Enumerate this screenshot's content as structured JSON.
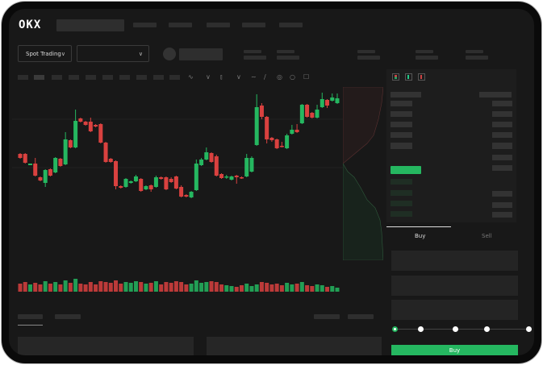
{
  "brand": {
    "logo": "OKX"
  },
  "header": {
    "nav_items": [
      "",
      "",
      "",
      "",
      ""
    ]
  },
  "controls": {
    "mode_dropdown": "Spot Trading",
    "pair_dropdown": "",
    "chevron_icon": "chevron-down-icon"
  },
  "order_form": {
    "tabs": [
      "Buy",
      "Sell"
    ],
    "active_tab": "Buy",
    "slider_value_percent": 0,
    "slider_marks": [
      0,
      25,
      50,
      75,
      100
    ]
  },
  "colors": {
    "up": "#25b760",
    "down": "#d9413f",
    "background": "#181818"
  },
  "chart_data": {
    "type": "candlestick",
    "title": "",
    "ohlc": [
      [
        97,
        98,
        91,
        92
      ],
      [
        97,
        98,
        85,
        86
      ],
      [
        83,
        85,
        83,
        85
      ],
      [
        85,
        92,
        69,
        70
      ],
      [
        68,
        69,
        63,
        64
      ],
      [
        61,
        78,
        56,
        77
      ],
      [
        78,
        79,
        69,
        70
      ],
      [
        74,
        93,
        73,
        92
      ],
      [
        91,
        92,
        81,
        82
      ],
      [
        84,
        124,
        83,
        115
      ],
      [
        114,
        115,
        104,
        105
      ],
      [
        105,
        152,
        104,
        138
      ],
      [
        141,
        142,
        136,
        137
      ],
      [
        137,
        138,
        132,
        133
      ],
      [
        137,
        142,
        124,
        125
      ],
      [
        133,
        134,
        130,
        131
      ],
      [
        134,
        135,
        110,
        111
      ],
      [
        111,
        112,
        86,
        87
      ],
      [
        91,
        92,
        86,
        87
      ],
      [
        88,
        89,
        53,
        57
      ],
      [
        57,
        58,
        54,
        55
      ],
      [
        56,
        67,
        55,
        66
      ],
      [
        61,
        64,
        60,
        63
      ],
      [
        63,
        71,
        62,
        69
      ],
      [
        66,
        67,
        50,
        51
      ],
      [
        53,
        58,
        52,
        57
      ],
      [
        58,
        59,
        50,
        53
      ],
      [
        56,
        70,
        55,
        68
      ],
      [
        68,
        69,
        65,
        66
      ],
      [
        68,
        69,
        52,
        53
      ],
      [
        66,
        68,
        61,
        62
      ],
      [
        69,
        70,
        53,
        54
      ],
      [
        56,
        58,
        43,
        44
      ],
      [
        46,
        47,
        43,
        44
      ],
      [
        43,
        51,
        42,
        50
      ],
      [
        52,
        90,
        51,
        85
      ],
      [
        83,
        92,
        82,
        90
      ],
      [
        90,
        105,
        89,
        99
      ],
      [
        98,
        99,
        86,
        87
      ],
      [
        94,
        96,
        69,
        70
      ],
      [
        72,
        73,
        66,
        67
      ],
      [
        68,
        71,
        66,
        69
      ],
      [
        65,
        70,
        64,
        69
      ],
      [
        70,
        71,
        60,
        68
      ],
      [
        68,
        69,
        66,
        67
      ],
      [
        69,
        97,
        68,
        92
      ],
      [
        75,
        94,
        74,
        92
      ],
      [
        108,
        171,
        107,
        155
      ],
      [
        157,
        160,
        140,
        143
      ],
      [
        143,
        144,
        110,
        115
      ],
      [
        117,
        118,
        112,
        114
      ],
      [
        115,
        116,
        103,
        104
      ],
      [
        107,
        112,
        105,
        106
      ],
      [
        104,
        122,
        103,
        120
      ],
      [
        122,
        133,
        121,
        127
      ],
      [
        127,
        134,
        123,
        124
      ],
      [
        135,
        159,
        134,
        158
      ],
      [
        158,
        159,
        142,
        143
      ],
      [
        148,
        149,
        141,
        142
      ],
      [
        142,
        158,
        141,
        152
      ],
      [
        155,
        173,
        154,
        165
      ],
      [
        164,
        165,
        154,
        157
      ],
      [
        163,
        172,
        162,
        167
      ],
      [
        160,
        172,
        159,
        166
      ]
    ],
    "volume": [
      10,
      12,
      9,
      11,
      9,
      13,
      10,
      12,
      9,
      14,
      11,
      16,
      10,
      9,
      12,
      9,
      13,
      12,
      11,
      14,
      10,
      12,
      11,
      13,
      12,
      10,
      11,
      13,
      9,
      12,
      11,
      13,
      12,
      9,
      10,
      14,
      11,
      12,
      13,
      12,
      9,
      8,
      7,
      6,
      8,
      10,
      7,
      9,
      12,
      11,
      9,
      10,
      8,
      11,
      9,
      10,
      12,
      8,
      7,
      9,
      8,
      6,
      7,
      5
    ]
  }
}
